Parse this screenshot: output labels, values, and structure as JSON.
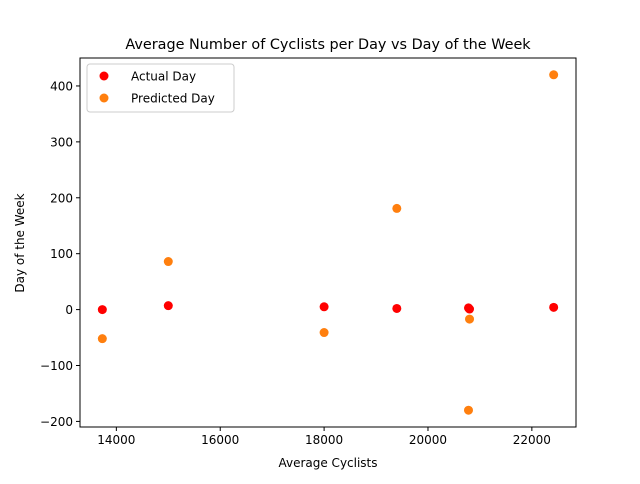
{
  "chart_data": {
    "type": "scatter",
    "title": "Average Number of Cyclists per Day vs Day of the Week",
    "xlabel": "Average Cyclists",
    "ylabel": "Day of the Week",
    "xlim": [
      13300,
      22850
    ],
    "ylim": [
      -210,
      450
    ],
    "x_ticks": [
      14000,
      16000,
      18000,
      20000,
      22000
    ],
    "y_ticks": [
      -200,
      -100,
      0,
      100,
      200,
      300,
      400
    ],
    "x_tick_labels": [
      "14000",
      "16000",
      "18000",
      "20000",
      "22000"
    ],
    "y_tick_labels": [
      "−200",
      "−100",
      "0",
      "100",
      "200",
      "300",
      "400"
    ],
    "grid": false,
    "legend_position": "top-left",
    "series": [
      {
        "name": "Actual Day",
        "color": "#ff0000",
        "points": [
          {
            "x": 13730,
            "y": 0
          },
          {
            "x": 15000,
            "y": 7
          },
          {
            "x": 18000,
            "y": 5
          },
          {
            "x": 19400,
            "y": 2
          },
          {
            "x": 20780,
            "y": 3
          },
          {
            "x": 20800,
            "y": 1
          },
          {
            "x": 22420,
            "y": 4
          }
        ]
      },
      {
        "name": "Predicted Day",
        "color": "#ff7f0e",
        "points": [
          {
            "x": 13730,
            "y": -52
          },
          {
            "x": 15000,
            "y": 86
          },
          {
            "x": 18000,
            "y": -41
          },
          {
            "x": 19400,
            "y": 181
          },
          {
            "x": 20780,
            "y": -180
          },
          {
            "x": 20800,
            "y": -17
          },
          {
            "x": 22420,
            "y": 420
          }
        ]
      }
    ]
  }
}
